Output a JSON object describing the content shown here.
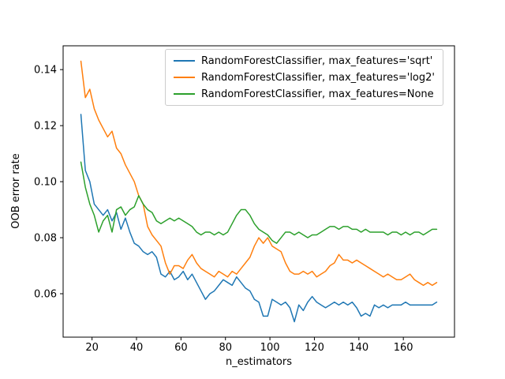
{
  "chart_data": {
    "type": "line",
    "title": "",
    "xlabel": "n_estimators",
    "ylabel": "OOB error rate",
    "xlim": [
      7,
      183
    ],
    "ylim": [
      0.0445,
      0.1485
    ],
    "xticks": [
      20,
      40,
      60,
      80,
      100,
      120,
      140,
      160
    ],
    "yticks": [
      0.06,
      0.08,
      0.1,
      0.12,
      0.14
    ],
    "ytick_labels": [
      "0.06",
      "0.08",
      "0.10",
      "0.12",
      "0.14"
    ],
    "grid": false,
    "legend_position": "upper right inside axes",
    "x": [
      15,
      17,
      19,
      21,
      23,
      25,
      27,
      29,
      31,
      33,
      35,
      37,
      39,
      41,
      43,
      45,
      47,
      49,
      51,
      53,
      55,
      57,
      59,
      61,
      63,
      65,
      67,
      69,
      71,
      73,
      75,
      77,
      79,
      81,
      83,
      85,
      87,
      89,
      91,
      93,
      95,
      97,
      99,
      101,
      103,
      105,
      107,
      109,
      111,
      113,
      115,
      117,
      119,
      121,
      123,
      125,
      127,
      129,
      131,
      133,
      135,
      137,
      139,
      141,
      143,
      145,
      147,
      149,
      151,
      153,
      155,
      157,
      159,
      161,
      163,
      165,
      167,
      169,
      171,
      173,
      175
    ],
    "series": [
      {
        "label": "RandomForestClassifier, max_features='sqrt'",
        "color": "#1f77b4",
        "values": [
          0.124,
          0.104,
          0.1,
          0.092,
          0.09,
          0.088,
          0.09,
          0.086,
          0.089,
          0.083,
          0.087,
          0.082,
          0.078,
          0.077,
          0.075,
          0.074,
          0.075,
          0.073,
          0.067,
          0.066,
          0.068,
          0.065,
          0.066,
          0.068,
          0.065,
          0.067,
          0.064,
          0.061,
          0.058,
          0.06,
          0.061,
          0.063,
          0.065,
          0.064,
          0.063,
          0.066,
          0.064,
          0.062,
          0.061,
          0.058,
          0.057,
          0.052,
          0.052,
          0.058,
          0.057,
          0.056,
          0.057,
          0.055,
          0.05,
          0.056,
          0.054,
          0.057,
          0.059,
          0.057,
          0.056,
          0.055,
          0.056,
          0.057,
          0.056,
          0.057,
          0.056,
          0.057,
          0.055,
          0.052,
          0.053,
          0.052,
          0.056,
          0.055,
          0.056,
          0.055,
          0.056,
          0.056,
          0.056,
          0.057,
          0.056,
          0.056,
          0.056,
          0.056,
          0.056,
          0.056,
          0.057
        ]
      },
      {
        "label": "RandomForestClassifier, max_features='log2'",
        "color": "#ff7f0e",
        "values": [
          0.143,
          0.13,
          0.133,
          0.126,
          0.122,
          0.119,
          0.116,
          0.118,
          0.112,
          0.11,
          0.106,
          0.103,
          0.1,
          0.095,
          0.092,
          0.084,
          0.081,
          0.079,
          0.077,
          0.071,
          0.067,
          0.07,
          0.07,
          0.069,
          0.072,
          0.074,
          0.071,
          0.069,
          0.068,
          0.067,
          0.066,
          0.068,
          0.067,
          0.066,
          0.068,
          0.067,
          0.069,
          0.071,
          0.073,
          0.077,
          0.08,
          0.078,
          0.08,
          0.077,
          0.076,
          0.075,
          0.071,
          0.068,
          0.067,
          0.067,
          0.068,
          0.067,
          0.068,
          0.066,
          0.067,
          0.068,
          0.07,
          0.071,
          0.074,
          0.072,
          0.072,
          0.071,
          0.072,
          0.071,
          0.07,
          0.069,
          0.068,
          0.067,
          0.066,
          0.067,
          0.066,
          0.065,
          0.065,
          0.066,
          0.067,
          0.065,
          0.064,
          0.063,
          0.064,
          0.063,
          0.064
        ]
      },
      {
        "label": "RandomForestClassifier, max_features=None",
        "color": "#2ca02c",
        "values": [
          0.107,
          0.098,
          0.092,
          0.088,
          0.082,
          0.086,
          0.088,
          0.082,
          0.09,
          0.091,
          0.088,
          0.09,
          0.091,
          0.095,
          0.092,
          0.09,
          0.089,
          0.086,
          0.085,
          0.086,
          0.087,
          0.086,
          0.087,
          0.086,
          0.085,
          0.084,
          0.082,
          0.081,
          0.082,
          0.082,
          0.081,
          0.082,
          0.081,
          0.082,
          0.085,
          0.088,
          0.09,
          0.09,
          0.088,
          0.085,
          0.083,
          0.082,
          0.081,
          0.079,
          0.078,
          0.08,
          0.082,
          0.082,
          0.081,
          0.082,
          0.081,
          0.08,
          0.081,
          0.081,
          0.082,
          0.083,
          0.084,
          0.084,
          0.083,
          0.084,
          0.084,
          0.083,
          0.083,
          0.082,
          0.083,
          0.082,
          0.082,
          0.082,
          0.082,
          0.081,
          0.082,
          0.082,
          0.081,
          0.082,
          0.081,
          0.082,
          0.082,
          0.081,
          0.082,
          0.083,
          0.083
        ]
      }
    ]
  }
}
